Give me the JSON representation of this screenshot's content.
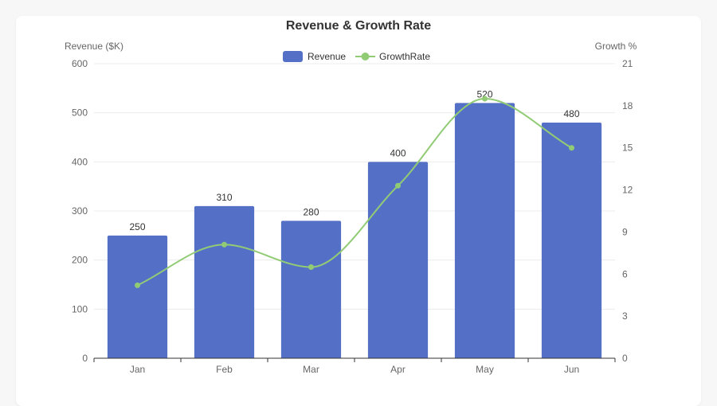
{
  "chart_data": {
    "type": "bar",
    "title": "Revenue & Growth Rate",
    "categories": [
      "Jan",
      "Feb",
      "Mar",
      "Apr",
      "May",
      "Jun"
    ],
    "series": [
      {
        "name": "Revenue",
        "type": "bar",
        "axis": "left",
        "values": [
          250,
          310,
          280,
          400,
          520,
          480
        ],
        "color": "#5470c6"
      },
      {
        "name": "GrowthRate",
        "type": "line",
        "axis": "right",
        "smooth": true,
        "values": [
          5.2,
          8.1,
          6.5,
          12.3,
          18.5,
          15.0
        ],
        "color": "#91cc75"
      }
    ],
    "ylabel_left": "Revenue ($K)",
    "ylabel_right": "Growth %",
    "ylim_left": [
      0,
      600
    ],
    "ylim_right": [
      0,
      21
    ],
    "yticks_left": [
      0,
      100,
      200,
      300,
      400,
      500,
      600
    ],
    "yticks_right": [
      0,
      3,
      6,
      9,
      12,
      15,
      18,
      21
    ],
    "grid": true,
    "legend": "top-center"
  },
  "colors": {
    "axis": "#333333",
    "grid": "#ececec"
  }
}
